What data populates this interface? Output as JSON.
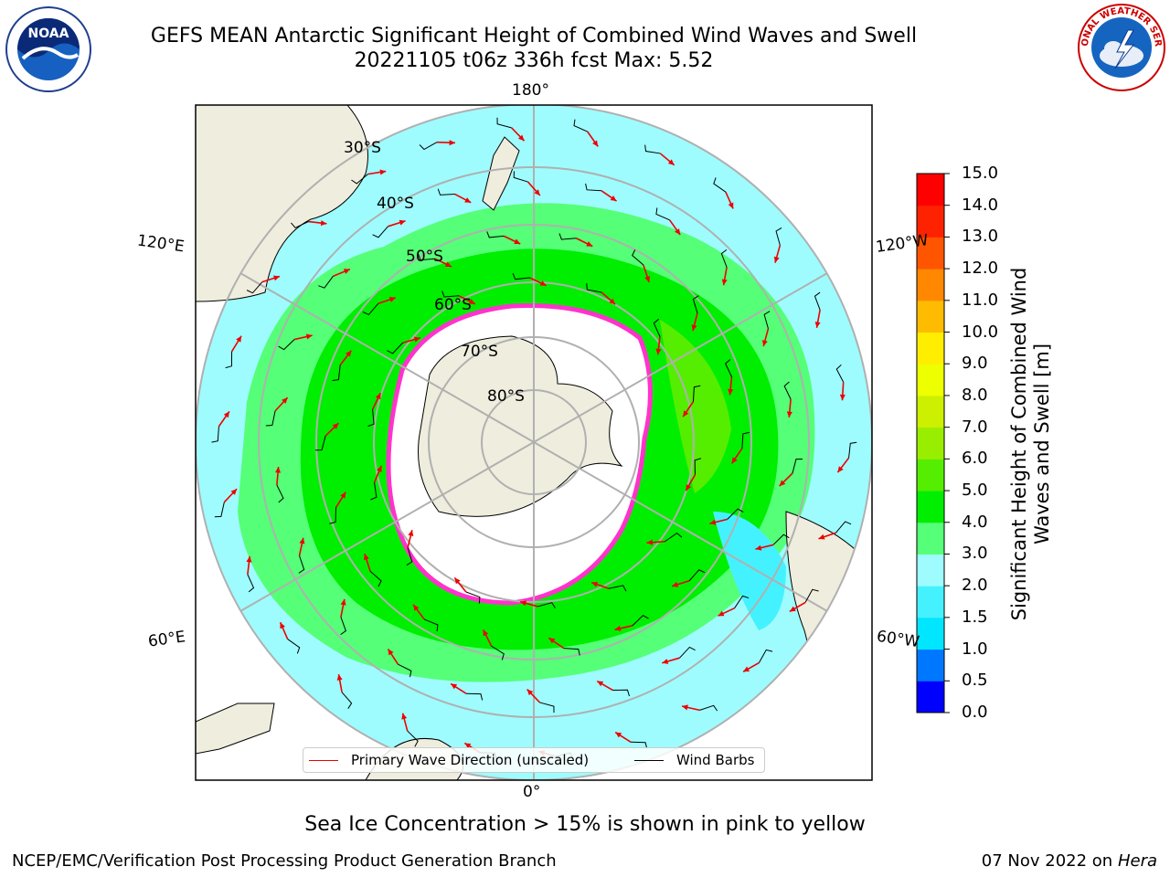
{
  "header": {
    "title_line1": "GEFS MEAN Antarctic Significant Height of Combined Wind Waves and Swell",
    "title_line2": "20221105 t06z 336h fcst   Max: 5.52"
  },
  "logos": {
    "noaa_text": "NOAA",
    "nws_text": "NATIONAL WEATHER SERVICE"
  },
  "map": {
    "projection": "south-polar-stereographic",
    "longitude_labels": {
      "top": "180°",
      "bottom": "0°",
      "upper_left": "120°E",
      "upper_right": "120°W",
      "lower_left": "60°E",
      "lower_right": "60°W"
    },
    "latitude_labels": [
      "30°S",
      "40°S",
      "50°S",
      "60°S",
      "70°S",
      "80°S"
    ],
    "colors": {
      "land": "#efedde",
      "sea_ice": "#ffffff",
      "ice_edge": "#ff33cc",
      "gridline": "#b0b0b0",
      "arrow": "#ee0000"
    }
  },
  "colorbar": {
    "title": "Significant Height of Combined Wind Waves and Swell [m]",
    "tick_labels": [
      "0.0",
      "0.5",
      "1.0",
      "1.5",
      "2.0",
      "3.0",
      "4.0",
      "5.0",
      "6.0",
      "7.0",
      "8.0",
      "9.0",
      "10.0",
      "11.0",
      "12.0",
      "13.0",
      "14.0",
      "15.0"
    ],
    "colors": [
      "#0000ff",
      "#0077ff",
      "#00e6ff",
      "#44f2ff",
      "#9efcff",
      "#55ff77",
      "#00ee00",
      "#55ee00",
      "#99ee00",
      "#ccf000",
      "#eeff00",
      "#ffee00",
      "#ffbb00",
      "#ff8800",
      "#ff5500",
      "#ff2200",
      "#ff0000"
    ]
  },
  "legend": {
    "primary_wave": "Primary Wave Direction (unscaled)",
    "wind_barbs": "Wind Barbs"
  },
  "footer": {
    "note": "Sea Ice Concentration > 15% is shown in pink to yellow",
    "credit": "NCEP/EMC/Verification Post Processing Product Generation Branch",
    "date_prefix": "07 Nov 2022 on",
    "machine": "Hera"
  }
}
